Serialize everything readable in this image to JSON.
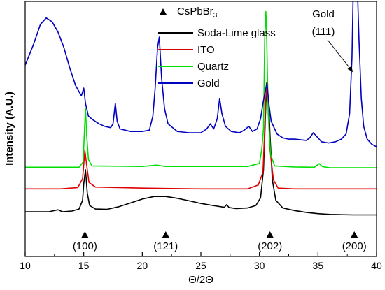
{
  "chart_data": {
    "type": "line",
    "title": "",
    "xlabel": "Θ/2Θ",
    "ylabel": "Intensity (A.U.)",
    "xlim": [
      10,
      40
    ],
    "ylim": [
      0,
      100
    ],
    "x_ticks": [
      10,
      15,
      20,
      25,
      30,
      35,
      40
    ],
    "y_ticks_shown": false,
    "grid": false,
    "legend": {
      "placement": "top-center",
      "marker_entry": {
        "symbol_name": "triangle-marker",
        "text_main": "CsPbBr",
        "text_sub": "3"
      },
      "entries": [
        {
          "name": "Soda-Lime glass",
          "color": "#000000"
        },
        {
          "name": "ITO",
          "color": "#e00000"
        },
        {
          "name": "Quartz",
          "color": "#00e000"
        },
        {
          "name": "Gold",
          "color": "#0000c0"
        }
      ]
    },
    "series": [
      {
        "name": "Soda-Lime glass",
        "color": "#000000",
        "points": [
          [
            10,
            17.5
          ],
          [
            12,
            17.5
          ],
          [
            12.8,
            18.3
          ],
          [
            13.2,
            17.5
          ],
          [
            14,
            17.8
          ],
          [
            14.6,
            18.6
          ],
          [
            14.9,
            22
          ],
          [
            15.0,
            28.5
          ],
          [
            15.15,
            34
          ],
          [
            15.3,
            25
          ],
          [
            15.5,
            20
          ],
          [
            16,
            18.6
          ],
          [
            17,
            18.5
          ],
          [
            18,
            19.5
          ],
          [
            19,
            21
          ],
          [
            20,
            22.5
          ],
          [
            21,
            23.5
          ],
          [
            22,
            23.5
          ],
          [
            23,
            22.8
          ],
          [
            24,
            21.8
          ],
          [
            25,
            20.8
          ],
          [
            26,
            20
          ],
          [
            27,
            19.3
          ],
          [
            27.2,
            20.3
          ],
          [
            27.4,
            19.2
          ],
          [
            28,
            18.8
          ],
          [
            29,
            19
          ],
          [
            29.7,
            20
          ],
          [
            30.1,
            23
          ],
          [
            30.35,
            34
          ],
          [
            30.55,
            60
          ],
          [
            30.65,
            66
          ],
          [
            30.8,
            58
          ],
          [
            30.9,
            48
          ],
          [
            31.1,
            30
          ],
          [
            31.4,
            22
          ],
          [
            32,
            19
          ],
          [
            33,
            18
          ],
          [
            34,
            17.3
          ],
          [
            35,
            16.8
          ],
          [
            36,
            16.5
          ],
          [
            38,
            16.3
          ],
          [
            40,
            16.3
          ]
        ]
      },
      {
        "name": "ITO",
        "color": "#e00000",
        "points": [
          [
            10,
            26.5
          ],
          [
            13,
            26.5
          ],
          [
            14.5,
            27
          ],
          [
            14.9,
            30.5
          ],
          [
            15.0,
            36
          ],
          [
            15.1,
            41.5
          ],
          [
            15.25,
            36
          ],
          [
            15.45,
            29
          ],
          [
            16,
            27.2
          ],
          [
            20,
            26.8
          ],
          [
            25,
            26.5
          ],
          [
            29,
            26.5
          ],
          [
            29.9,
            28
          ],
          [
            30.3,
            33
          ],
          [
            30.45,
            50
          ],
          [
            30.6,
            68
          ],
          [
            30.75,
            60
          ],
          [
            30.9,
            42
          ],
          [
            31.2,
            30
          ],
          [
            31.6,
            26.8
          ],
          [
            33,
            26.5
          ],
          [
            36,
            26.5
          ],
          [
            40,
            26.5
          ]
        ]
      },
      {
        "name": "Quartz",
        "color": "#00e000",
        "points": [
          [
            10,
            35
          ],
          [
            14.6,
            35
          ],
          [
            14.95,
            37
          ],
          [
            15.05,
            48
          ],
          [
            15.15,
            58
          ],
          [
            15.25,
            48
          ],
          [
            15.4,
            38
          ],
          [
            15.7,
            35.5
          ],
          [
            20,
            35.3
          ],
          [
            21.2,
            35.8
          ],
          [
            22,
            35.3
          ],
          [
            29,
            35.3
          ],
          [
            30,
            36.5
          ],
          [
            30.2,
            42
          ],
          [
            30.35,
            50
          ],
          [
            30.45,
            85
          ],
          [
            30.55,
            96
          ],
          [
            30.62,
            87
          ],
          [
            30.75,
            56
          ],
          [
            30.95,
            40
          ],
          [
            31.3,
            35.5
          ],
          [
            33,
            35.1
          ],
          [
            34.7,
            35
          ],
          [
            35.1,
            36.4
          ],
          [
            35.4,
            35.2
          ],
          [
            36,
            34.8
          ],
          [
            40,
            34.8
          ]
        ]
      },
      {
        "name": "Gold",
        "color": "#0000c0",
        "points": [
          [
            10,
            75
          ],
          [
            10.7,
            83
          ],
          [
            11.3,
            91
          ],
          [
            11.8,
            93.5
          ],
          [
            12.3,
            92
          ],
          [
            12.8,
            88
          ],
          [
            13.3,
            82
          ],
          [
            13.8,
            74
          ],
          [
            14.3,
            67
          ],
          [
            14.8,
            63
          ],
          [
            15.0,
            66
          ],
          [
            15.15,
            60
          ],
          [
            15.4,
            55
          ],
          [
            15.8,
            53.5
          ],
          [
            16.3,
            52
          ],
          [
            16.8,
            51
          ],
          [
            17.3,
            50.5
          ],
          [
            17.5,
            52
          ],
          [
            17.7,
            60
          ],
          [
            17.85,
            53
          ],
          [
            18.1,
            50
          ],
          [
            19,
            49
          ],
          [
            20,
            49
          ],
          [
            20.6,
            49.5
          ],
          [
            20.9,
            55
          ],
          [
            21.1,
            66
          ],
          [
            21.3,
            82
          ],
          [
            21.45,
            86
          ],
          [
            21.65,
            70
          ],
          [
            21.9,
            58
          ],
          [
            22.2,
            52
          ],
          [
            23,
            49
          ],
          [
            24,
            48.5
          ],
          [
            25,
            48.5
          ],
          [
            25.5,
            50
          ],
          [
            25.8,
            52
          ],
          [
            26.1,
            50
          ],
          [
            26.4,
            54
          ],
          [
            26.6,
            62
          ],
          [
            26.8,
            56
          ],
          [
            27.1,
            51
          ],
          [
            27.6,
            49
          ],
          [
            28.3,
            48.5
          ],
          [
            28.7,
            49.5
          ],
          [
            29.1,
            51
          ],
          [
            29.4,
            49
          ],
          [
            29.8,
            50
          ],
          [
            30.1,
            54
          ],
          [
            30.3,
            60
          ],
          [
            30.5,
            65
          ],
          [
            30.65,
            68
          ],
          [
            30.8,
            60
          ],
          [
            31.0,
            53
          ],
          [
            31.5,
            48
          ],
          [
            32,
            46.5
          ],
          [
            32.5,
            46
          ],
          [
            33,
            46
          ],
          [
            34,
            45.5
          ],
          [
            34.3,
            46.5
          ],
          [
            34.6,
            48.5
          ],
          [
            34.9,
            47
          ],
          [
            35.3,
            45
          ],
          [
            35.9,
            44.5
          ],
          [
            36.5,
            45
          ],
          [
            37,
            46
          ],
          [
            37.4,
            48
          ],
          [
            37.7,
            56
          ],
          [
            37.9,
            78
          ],
          [
            38.05,
            115
          ],
          [
            38.3,
            115
          ],
          [
            38.5,
            85
          ],
          [
            38.7,
            62
          ],
          [
            38.9,
            51
          ],
          [
            39.2,
            46
          ],
          [
            39.6,
            44
          ],
          [
            40,
            43
          ]
        ]
      }
    ],
    "annotations": [
      {
        "text": "Gold",
        "text2": "(111)",
        "arrow_to_x": 38.1
      }
    ],
    "peak_markers": [
      {
        "x": 15.1,
        "label": "(100)"
      },
      {
        "x": 22.0,
        "label": "(121)"
      },
      {
        "x": 30.9,
        "label": "(202)"
      },
      {
        "x": 38.1,
        "label": "(200)"
      }
    ]
  }
}
